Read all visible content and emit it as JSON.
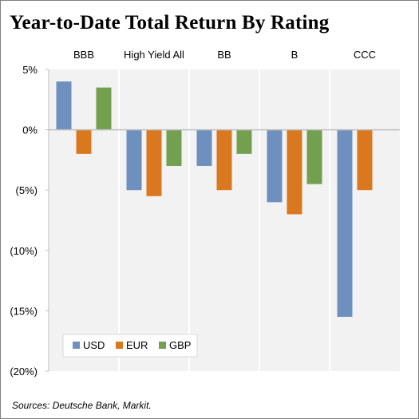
{
  "title": "Year-to-Date Total Return By Rating",
  "source": "Sources: Deutsche Bank, Markit.",
  "colors": {
    "plot_bg": "#f2f2f2",
    "axis": "#bfbfbf",
    "divider": "#ffffff"
  },
  "chart_data": {
    "type": "bar",
    "categories": [
      "BBB",
      "High Yield All",
      "BB",
      "B",
      "CCC"
    ],
    "series": [
      {
        "name": "USD",
        "color": "#6d90be",
        "values": [
          4,
          -5,
          -3,
          -6,
          -15.5
        ]
      },
      {
        "name": "EUR",
        "color": "#d9781f",
        "values": [
          -2,
          -5.5,
          -5,
          -7,
          -5
        ]
      },
      {
        "name": "GBP",
        "color": "#72a04e",
        "values": [
          3.5,
          -3,
          -2,
          -4.5,
          null
        ]
      }
    ],
    "y_ticks": [
      5,
      0,
      -5,
      -10,
      -15,
      -20
    ],
    "y_tick_labels": [
      "5%",
      "0%",
      "(5%)",
      "(10%)",
      "(15%)",
      "(20%)"
    ],
    "ylim": [
      -20,
      5
    ],
    "legend": "bottom-left",
    "category_labels_position": "top",
    "grid": false
  }
}
